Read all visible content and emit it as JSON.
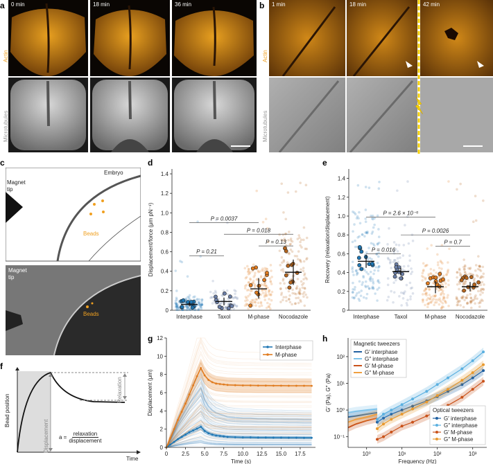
{
  "panel_letters": {
    "a": "a",
    "b": "b",
    "c": "c",
    "d": "d",
    "e": "e",
    "f": "f",
    "g": "g",
    "h": "h"
  },
  "panel_a": {
    "times": [
      "0 min",
      "18 min",
      "36 min"
    ],
    "row_labels": {
      "actin": "Actin",
      "microtubules": "Microtubules"
    }
  },
  "panel_b": {
    "times": [
      "1 min",
      "18 min",
      "42 min"
    ],
    "row_labels": {
      "actin": "Actin",
      "microtubules": "Microtubules"
    }
  },
  "panel_c": {
    "magnet_tip": "Magnet\ntip",
    "embryo": "Embryo",
    "beads": "Beads",
    "photo_magnet_tip": "Magnet\ntip",
    "photo_beads": "Beads"
  },
  "panel_f": {
    "y_label": "Bead position",
    "x_label": "Time",
    "displacement": "Displacement",
    "relaxation": "Relaxation",
    "formula_lhs": "a =",
    "formula_num": "relaxation",
    "formula_den": "displacement"
  },
  "colors": {
    "interphase": "#1f77b4",
    "mphase": "#e07b1f",
    "taxol": "#6b7fa8",
    "nocodazole": "#b5651d",
    "dashed_line": "#f5d000"
  },
  "chart_data": [
    {
      "id": "d",
      "type": "scatter",
      "ylabel": "Displacement/force (μm pN⁻¹)",
      "categories": [
        "Interphase",
        "Taxol",
        "M-phase",
        "Nocodazole"
      ],
      "yticks": [
        "0",
        "0.2",
        "0.4",
        "0.6",
        "0.8",
        "1.0",
        "1.2",
        "1.4"
      ],
      "ylim": [
        0,
        1.45
      ],
      "medians": [
        0.06,
        0.09,
        0.22,
        0.39
      ],
      "ci_low": [
        0.04,
        0.05,
        0.12,
        0.26
      ],
      "ci_high": [
        0.08,
        0.13,
        0.33,
        0.52
      ],
      "comparisons": [
        {
          "label": "P = 0.21",
          "from": 0,
          "to": 1,
          "y": 0.56
        },
        {
          "label": "P = 0.13",
          "from": 2,
          "to": 3,
          "y": 0.66
        },
        {
          "label": "P = 0.018",
          "from": 1,
          "to": 3,
          "y": 0.78
        },
        {
          "label": "P = 0.0037",
          "from": 0,
          "to": 2,
          "y": 0.9
        }
      ]
    },
    {
      "id": "e",
      "type": "scatter",
      "ylabel": "Recovery (relaxation/displacement)",
      "categories": [
        "Interphase",
        "Taxol",
        "M-phase",
        "Nocodazole"
      ],
      "yticks": [
        "0",
        "0.2",
        "0.4",
        "0.6",
        "0.8",
        "1.0",
        "1.2",
        "1.4"
      ],
      "ylim": [
        0,
        1.5
      ],
      "medians": [
        0.52,
        0.41,
        0.25,
        0.25
      ],
      "ci_low": [
        0.45,
        0.37,
        0.18,
        0.2
      ],
      "ci_high": [
        0.59,
        0.45,
        0.31,
        0.3
      ],
      "comparisons": [
        {
          "label": "P = 0.016",
          "from": 0,
          "to": 1,
          "y": 0.6
        },
        {
          "label": "P = 0.7",
          "from": 2,
          "to": 3,
          "y": 0.68
        },
        {
          "label": "P = 0.0026",
          "from": 1,
          "to": 3,
          "y": 0.8
        },
        {
          "label": "P = 2.6 × 10⁻⁵",
          "from": 0,
          "to": 2,
          "y": 0.99
        }
      ]
    },
    {
      "id": "g",
      "type": "line",
      "xlabel": "Time (s)",
      "ylabel": "Displacement (μm)",
      "xlim": [
        0,
        19.5
      ],
      "ylim": [
        0,
        12
      ],
      "xticks": [
        "0",
        "2.5",
        "5.0",
        "7.5",
        "10.0",
        "12.5",
        "15.0",
        "17.5"
      ],
      "yticks": [
        "0",
        "2",
        "4",
        "6",
        "8",
        "10",
        "12"
      ],
      "series": [
        {
          "name": "Interphase",
          "x": [
            0,
            0.5,
            1,
            1.5,
            2,
            2.5,
            3,
            3.5,
            4,
            4.5,
            5,
            5.5,
            6,
            6.5,
            7,
            7.5,
            8,
            9,
            10,
            11,
            12,
            13,
            14,
            15,
            16,
            17,
            18,
            19
          ],
          "y": [
            0,
            0.3,
            0.6,
            0.9,
            1.15,
            1.4,
            1.65,
            1.85,
            2.05,
            2.25,
            1.8,
            1.55,
            1.4,
            1.3,
            1.25,
            1.2,
            1.15,
            1.12,
            1.1,
            1.1,
            1.08,
            1.08,
            1.07,
            1.07,
            1.06,
            1.06,
            1.05,
            1.05
          ]
        },
        {
          "name": "M-phase",
          "x": [
            0,
            0.5,
            1,
            1.5,
            2,
            2.5,
            3,
            3.5,
            4,
            4.5,
            5,
            5.5,
            6,
            6.5,
            7,
            7.5,
            8,
            9,
            10,
            11,
            12,
            13,
            14,
            15,
            16,
            17,
            18,
            19
          ],
          "y": [
            0,
            1.0,
            2.0,
            3.0,
            3.9,
            4.8,
            5.8,
            6.8,
            7.8,
            8.7,
            7.9,
            7.4,
            7.15,
            7.0,
            6.95,
            6.9,
            6.85,
            6.82,
            6.8,
            6.8,
            6.78,
            6.78,
            6.77,
            6.77,
            6.76,
            6.76,
            6.76,
            6.75
          ]
        }
      ]
    },
    {
      "id": "h",
      "type": "line",
      "xlabel": "Frequency (Hz)",
      "ylabel": "G′ (Pa), G″ (Pa)",
      "xscale": "log",
      "yscale": "log",
      "xlim": [
        0.3,
        2500
      ],
      "ylim": [
        0.04,
        500
      ],
      "xticks": [
        "10⁰",
        "10¹",
        "10²",
        "10³"
      ],
      "yticks": [
        "10⁻¹",
        "10⁰",
        "10¹",
        "10²"
      ],
      "legend_magnetic_title": "Magnetic tweezers",
      "legend_optical_title": "Optical tweezers",
      "series": [
        {
          "name": "G′ interphase",
          "group": "magnetic",
          "color": "#1f5fa0",
          "x": [
            0.3,
            0.5,
            1,
            2
          ],
          "y": [
            0.55,
            0.6,
            0.7,
            0.8
          ]
        },
        {
          "name": "G″ interphase",
          "group": "magnetic",
          "color": "#7ec3ea",
          "x": [
            0.3,
            0.5,
            1,
            2
          ],
          "y": [
            0.8,
            0.9,
            1.0,
            1.1
          ]
        },
        {
          "name": "G′ M-phase",
          "group": "magnetic",
          "color": "#c9521a",
          "x": [
            0.3,
            0.5,
            1,
            2
          ],
          "y": [
            0.22,
            0.3,
            0.4,
            0.5
          ]
        },
        {
          "name": "G″ M-phase",
          "group": "magnetic",
          "color": "#f0a040",
          "x": [
            0.3,
            0.5,
            1,
            2
          ],
          "y": [
            0.35,
            0.45,
            0.55,
            0.7
          ]
        },
        {
          "name": "G′ interphase",
          "group": "optical",
          "color": "#1f5fa0",
          "x": [
            2,
            3,
            5,
            10,
            20,
            50,
            100,
            200,
            500,
            1000,
            2000
          ],
          "y": [
            0.35,
            0.5,
            0.7,
            1.0,
            1.4,
            2.2,
            3.2,
            5,
            9,
            16,
            30
          ]
        },
        {
          "name": "G″ interphase",
          "group": "optical",
          "color": "#5bb0e0",
          "x": [
            2,
            3,
            5,
            10,
            20,
            50,
            100,
            200,
            500,
            1000,
            2000
          ],
          "y": [
            0.45,
            0.7,
            1.0,
            1.6,
            2.6,
            5,
            9,
            16,
            35,
            70,
            150
          ]
        },
        {
          "name": "G′ M-phase",
          "group": "optical",
          "color": "#c9521a",
          "x": [
            2,
            3,
            5,
            10,
            20,
            50,
            100,
            200,
            500,
            1000,
            2000
          ],
          "y": [
            0.08,
            0.1,
            0.15,
            0.25,
            0.35,
            0.6,
            0.9,
            1.5,
            3,
            6,
            12
          ]
        },
        {
          "name": "G″ M-phase",
          "group": "optical",
          "color": "#e89a30",
          "x": [
            2,
            3,
            5,
            10,
            20,
            50,
            100,
            200,
            500,
            1000,
            2000
          ],
          "y": [
            0.2,
            0.3,
            0.45,
            0.7,
            1.1,
            2,
            3.5,
            6,
            13,
            25,
            50
          ]
        }
      ]
    }
  ]
}
